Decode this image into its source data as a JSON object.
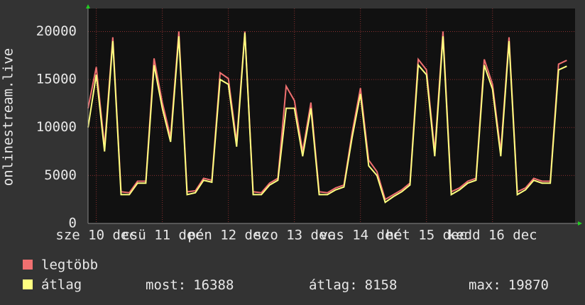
{
  "chart_data": {
    "type": "line",
    "y_label": "onlinestream.live",
    "x": [
      -3,
      0,
      3,
      6,
      9,
      12,
      15,
      18,
      21,
      24,
      27,
      30,
      33,
      36,
      39,
      42,
      45,
      48,
      51,
      54,
      57,
      60,
      63,
      66,
      69,
      72,
      75,
      78,
      81,
      84,
      87,
      90,
      93,
      96,
      99,
      102,
      105,
      108,
      111,
      114,
      117,
      120,
      123,
      126,
      129,
      132,
      135,
      138,
      141,
      144,
      147,
      150,
      153,
      156,
      159,
      162,
      165,
      168,
      171
    ],
    "xlim": [
      -3,
      174
    ],
    "xticks": [
      {
        "value": 0,
        "label": "sze 10 dec"
      },
      {
        "value": 24,
        "label": "csü 11 dec"
      },
      {
        "value": 48,
        "label": "pén 12 dec"
      },
      {
        "value": 72,
        "label": "szo 13 dec"
      },
      {
        "value": 96,
        "label": "vas 14 dec"
      },
      {
        "value": 120,
        "label": "hét 15 dec"
      },
      {
        "value": 144,
        "label": "kedd 16 dec"
      }
    ],
    "ylim": [
      0,
      22400
    ],
    "yticks": [
      0,
      5000,
      10000,
      15000,
      20000
    ],
    "grid": true,
    "series": [
      {
        "name": "legtöbb",
        "color": "#f07070",
        "values": [
          12000,
          16300,
          8000,
          19400,
          3300,
          3200,
          4400,
          4400,
          17200,
          12600,
          9000,
          20000,
          3300,
          3400,
          4700,
          4500,
          15700,
          15100,
          8500,
          20000,
          3300,
          3200,
          4200,
          4700,
          14300,
          12800,
          7500,
          12600,
          3300,
          3200,
          3700,
          4000,
          9500,
          14100,
          6600,
          5400,
          2500,
          3000,
          3500,
          4200,
          17100,
          16000,
          7500,
          20000,
          3300,
          3700,
          4400,
          4700,
          17100,
          14500,
          7500,
          19400,
          3300,
          3700,
          4700,
          4400,
          4400,
          16600,
          17000
        ]
      },
      {
        "name": "átlag",
        "color": "#ffff80",
        "values": [
          10000,
          15500,
          7500,
          19000,
          3000,
          3000,
          4200,
          4200,
          16500,
          12000,
          8500,
          19500,
          3000,
          3200,
          4500,
          4300,
          15000,
          14500,
          8000,
          19870,
          3000,
          3000,
          4000,
          4500,
          12000,
          12000,
          7000,
          12000,
          3000,
          3000,
          3500,
          3800,
          9000,
          13500,
          6000,
          5000,
          2200,
          2800,
          3300,
          4000,
          16500,
          15500,
          7000,
          19500,
          3000,
          3500,
          4200,
          4500,
          16500,
          14000,
          7000,
          19000,
          3000,
          3500,
          4500,
          4200,
          4200,
          16000,
          16388
        ]
      }
    ],
    "stats": [
      {
        "label": "most:",
        "value": 16388
      },
      {
        "label": "átlag:",
        "value": 8158
      },
      {
        "label": "max:",
        "value": 19870
      }
    ]
  }
}
